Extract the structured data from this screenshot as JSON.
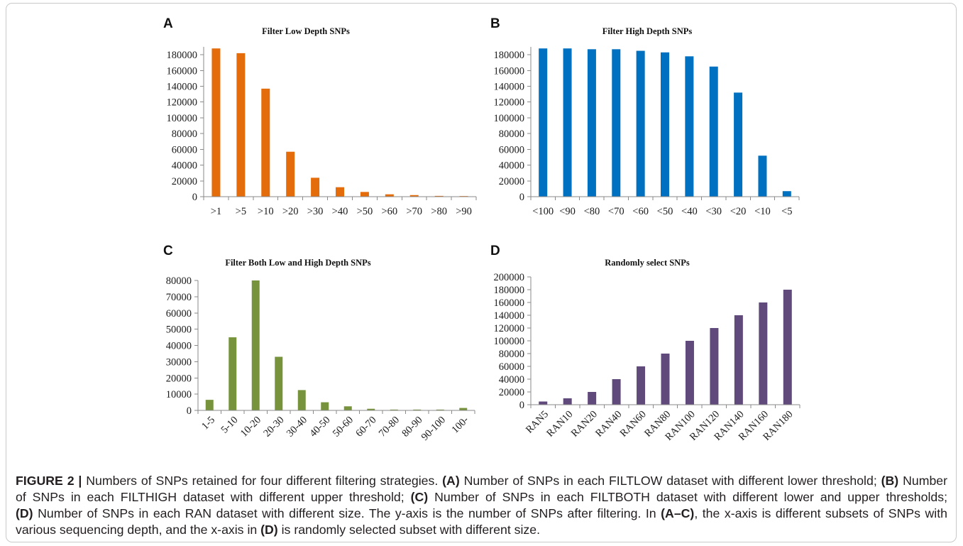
{
  "chart_data": [
    {
      "panel": "A",
      "type": "bar",
      "title": "Filter Low Depth SNPs",
      "categories": [
        ">1",
        ">5",
        ">10",
        ">20",
        ">30",
        ">40",
        ">50",
        ">60",
        ">70",
        ">80",
        ">90"
      ],
      "values": [
        188000,
        182000,
        137000,
        57000,
        24000,
        12000,
        6000,
        3000,
        2000,
        1000,
        800
      ],
      "yticks": [
        0,
        20000,
        40000,
        60000,
        80000,
        100000,
        120000,
        140000,
        160000,
        180000
      ],
      "ylim": [
        0,
        190000
      ],
      "grid": false,
      "color": "#E46C0A"
    },
    {
      "panel": "B",
      "type": "bar",
      "title": "Filter High Depth SNPs",
      "categories": [
        "<100",
        "<90",
        "<80",
        "<70",
        "<60",
        "<50",
        "<40",
        "<30",
        "<20",
        "<10",
        "<5"
      ],
      "values": [
        188000,
        188000,
        187000,
        187000,
        185000,
        183000,
        178000,
        165000,
        132000,
        52000,
        7000
      ],
      "yticks": [
        0,
        20000,
        40000,
        60000,
        80000,
        100000,
        120000,
        140000,
        160000,
        180000
      ],
      "ylim": [
        0,
        190000
      ],
      "grid": false,
      "color": "#0070C0"
    },
    {
      "panel": "C",
      "type": "bar",
      "title": "Filter Both Low and High Depth SNPs",
      "categories": [
        "1-5",
        "5-10",
        "10-20",
        "20-30",
        "30-40",
        "40-50",
        "50-60",
        "60-70",
        "70-80",
        "80-90",
        "90-100",
        "100-"
      ],
      "values": [
        6500,
        45000,
        80000,
        33000,
        12500,
        5000,
        2500,
        1000,
        500,
        500,
        500,
        1500
      ],
      "yticks": [
        0,
        10000,
        20000,
        30000,
        40000,
        50000,
        60000,
        70000,
        80000
      ],
      "ylim": [
        0,
        80000
      ],
      "grid": false,
      "color": "#77933C"
    },
    {
      "panel": "D",
      "type": "bar",
      "title": "Randomly select SNPs",
      "categories": [
        "RAN5",
        "RAN10",
        "RAN20",
        "RAN40",
        "RAN60",
        "RAN80",
        "RAN100",
        "RAN120",
        "RAN140",
        "RAN160",
        "RAN180"
      ],
      "values": [
        5000,
        10000,
        20000,
        40000,
        60000,
        80000,
        100000,
        120000,
        140000,
        160000,
        180000
      ],
      "yticks": [
        0,
        20000,
        40000,
        60000,
        80000,
        100000,
        120000,
        140000,
        160000,
        180000,
        200000
      ],
      "ylim": [
        0,
        200000
      ],
      "grid": false,
      "color": "#604A7B"
    }
  ],
  "caption": {
    "lines": [
      [
        "FIGURE 2 |",
        "Numbers of SNPs retained for four different filtering strategies.",
        "(A)",
        "Number of SNPs in each FILTLOW dataset with different lower threshold;",
        "(B)",
        "Number"
      ],
      [
        "of SNPs in each FILTHIGH dataset with different upper threshold;",
        "(C)",
        "Number of SNPs in each FILTBOTH dataset with different lower and upper thresholds;"
      ],
      [
        "(D)",
        "Number of SNPs in each RAN dataset with different size. The y-axis is the number of SNPs after filtering. In",
        "(A–C)",
        ", the x-axis is different subsets of SNPs with"
      ],
      [
        "various sequencing depth, and the x-axis in",
        "(D)",
        "is randomly selected subset with different size."
      ]
    ]
  }
}
